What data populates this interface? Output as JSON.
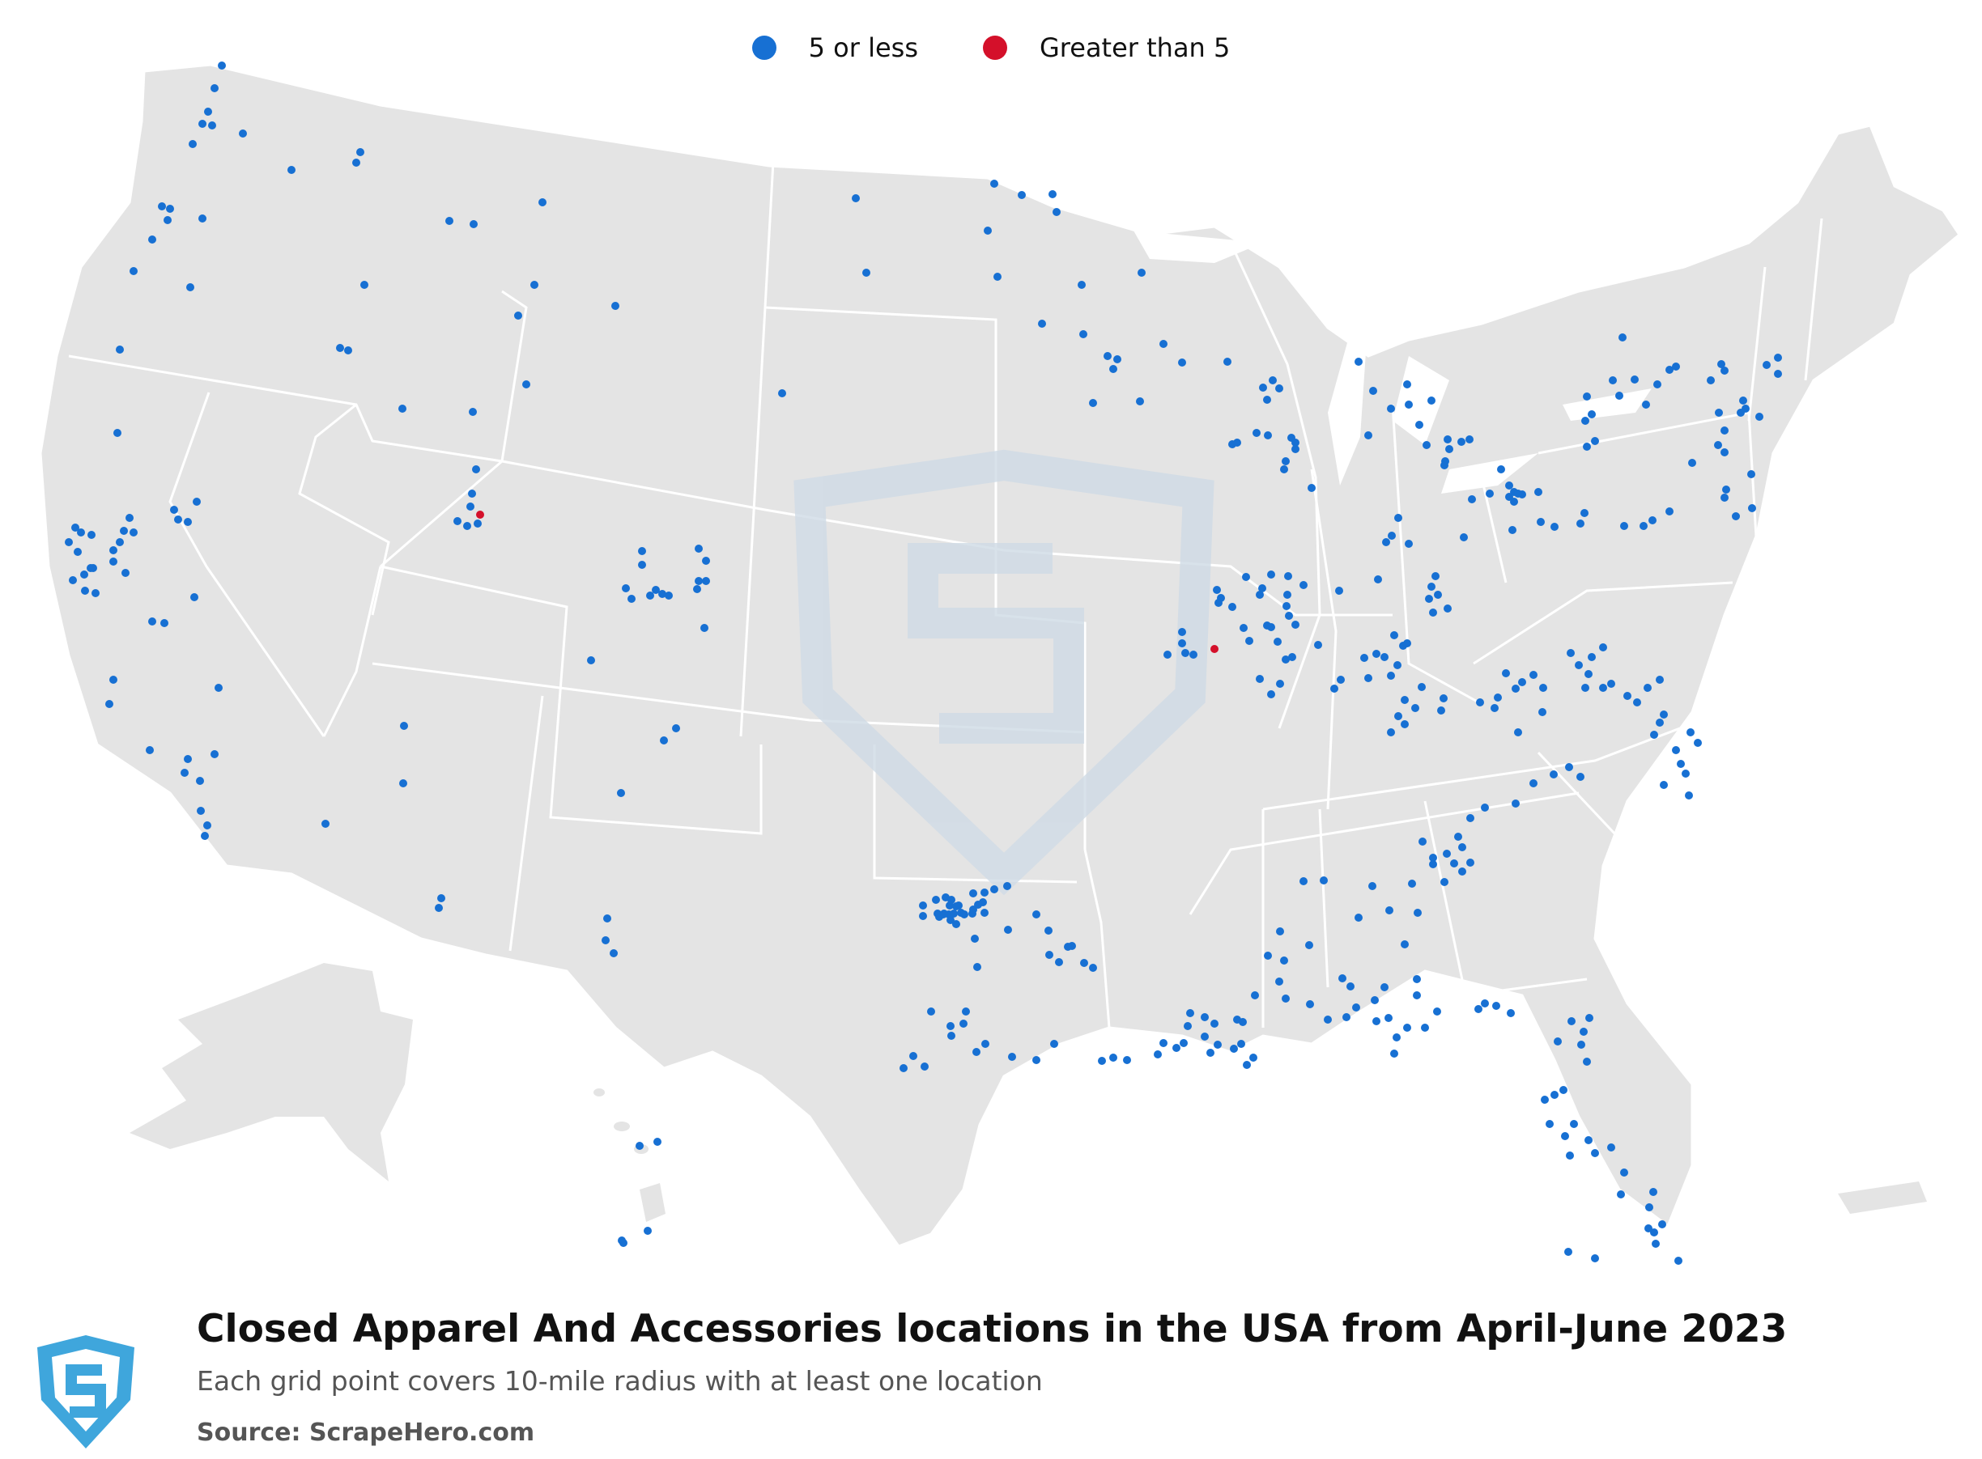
{
  "legend": {
    "items": [
      {
        "label": "5 or less",
        "color": "#1770d3"
      },
      {
        "label": "Greater than 5",
        "color": "#d4102a"
      }
    ]
  },
  "colors": {
    "land": "#e4e4e4",
    "borders": "#ffffff",
    "watermark": "#cfdbe6",
    "logo": "#3fa6dc"
  },
  "footer": {
    "title": "Closed Apparel And Accessories locations in the USA from April-June 2023",
    "subtitle": "Each grid point covers 10-mile radius with at least one location",
    "source": "Source: ScrapeHero.com"
  },
  "icons": {
    "logo": "scrapehero-shield-icon",
    "watermark": "scrapehero-shield-watermark-icon"
  }
}
